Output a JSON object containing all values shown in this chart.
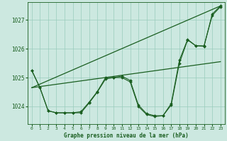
{
  "background_color": "#cce8e0",
  "grid_color": "#99ccbb",
  "line_color": "#1a5e20",
  "title": "Graphe pression niveau de la mer (hPa)",
  "xlim": [
    -0.5,
    23.5
  ],
  "ylim": [
    1023.4,
    1027.6
  ],
  "yticks": [
    1024,
    1025,
    1026,
    1027
  ],
  "xticks": [
    0,
    1,
    2,
    3,
    4,
    5,
    6,
    7,
    8,
    9,
    10,
    11,
    12,
    13,
    14,
    15,
    16,
    17,
    18,
    19,
    20,
    21,
    22,
    23
  ],
  "series1": {
    "x": [
      0,
      1,
      2,
      3,
      4,
      5,
      6,
      7,
      8,
      9,
      10,
      11,
      12,
      13,
      14,
      15,
      16,
      17,
      18,
      19,
      20,
      21,
      22,
      23
    ],
    "y": [
      1025.25,
      1024.65,
      1023.85,
      1023.78,
      1023.78,
      1023.78,
      1023.78,
      1024.12,
      1024.5,
      1024.95,
      1025.0,
      1025.05,
      1024.9,
      1024.05,
      1023.75,
      1023.68,
      1023.68,
      1024.05,
      1025.5,
      1026.3,
      1026.1,
      1026.1,
      1027.15,
      1027.45
    ]
  },
  "series2": {
    "x": [
      0,
      1,
      2,
      3,
      4,
      5,
      6,
      7,
      8,
      9,
      10,
      11,
      12,
      13,
      14,
      15,
      16,
      17,
      18,
      19,
      20,
      21,
      22,
      23
    ],
    "y": [
      1025.25,
      1024.65,
      1023.85,
      1023.78,
      1023.78,
      1023.78,
      1023.82,
      1024.15,
      1024.52,
      1025.0,
      1025.0,
      1025.0,
      1024.85,
      1024.0,
      1023.72,
      1023.65,
      1023.68,
      1024.1,
      1025.6,
      1026.32,
      1026.1,
      1026.08,
      1027.2,
      1027.48
    ]
  },
  "line_straight1": {
    "x": [
      0,
      23
    ],
    "y": [
      1024.65,
      1025.55
    ]
  },
  "line_straight2": {
    "x": [
      0,
      23
    ],
    "y": [
      1024.65,
      1027.48
    ]
  }
}
